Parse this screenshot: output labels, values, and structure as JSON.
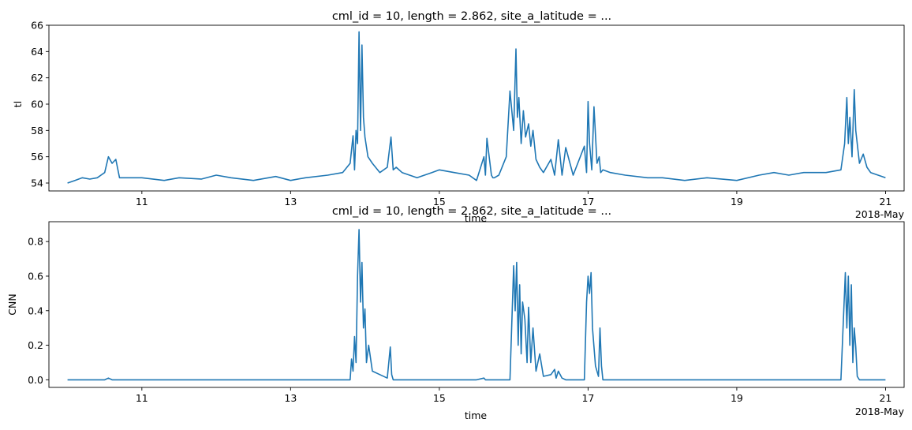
{
  "chart_data": [
    {
      "type": "line",
      "title": "cml_id = 10, length = 2.862, site_a_latitude = ...",
      "xlabel": "time",
      "ylabel": "tl",
      "x_offset_label": "2018-May",
      "x_ticks": [
        11,
        13,
        15,
        17,
        19,
        21
      ],
      "x_tick_labels": [
        "11",
        "13",
        "15",
        "17",
        "19",
        "21"
      ],
      "y_ticks": [
        54,
        56,
        58,
        60,
        62,
        64,
        66
      ],
      "y_tick_labels": [
        "54",
        "56",
        "58",
        "60",
        "62",
        "64",
        "66"
      ],
      "xlim": [
        9.75,
        21.25
      ],
      "ylim": [
        53.4,
        66.0
      ],
      "line_color": "#1f77b4",
      "grid": false,
      "series": [
        {
          "x": [
            10.0,
            10.1,
            10.2,
            10.3,
            10.4,
            10.5,
            10.55,
            10.6,
            10.65,
            10.7,
            10.8,
            11.0,
            11.3,
            11.5,
            11.8,
            12.0,
            12.2,
            12.5,
            12.8,
            13.0,
            13.2,
            13.5,
            13.7,
            13.8,
            13.84,
            13.86,
            13.88,
            13.9,
            13.92,
            13.94,
            13.96,
            13.98,
            14.0,
            14.04,
            14.1,
            14.2,
            14.3,
            14.35,
            14.38,
            14.42,
            14.5,
            14.7,
            14.9,
            15.0,
            15.2,
            15.4,
            15.5,
            15.6,
            15.62,
            15.64,
            15.7,
            15.72,
            15.74,
            15.8,
            15.9,
            15.95,
            16.0,
            16.03,
            16.05,
            16.07,
            16.1,
            16.13,
            16.16,
            16.2,
            16.23,
            16.26,
            16.3,
            16.35,
            16.4,
            16.5,
            16.55,
            16.6,
            16.65,
            16.7,
            16.8,
            16.95,
            16.98,
            17.0,
            17.02,
            17.05,
            17.08,
            17.12,
            17.15,
            17.17,
            17.2,
            17.3,
            17.5,
            17.8,
            18.0,
            18.3,
            18.6,
            19.0,
            19.3,
            19.5,
            19.7,
            19.9,
            20.2,
            20.4,
            20.45,
            20.48,
            20.5,
            20.52,
            20.55,
            20.58,
            20.6,
            20.65,
            20.7,
            20.75,
            20.8,
            20.9,
            21.0
          ],
          "y": [
            54.0,
            54.2,
            54.4,
            54.3,
            54.4,
            54.8,
            56.0,
            55.5,
            55.8,
            54.4,
            54.4,
            54.4,
            54.2,
            54.4,
            54.3,
            54.6,
            54.4,
            54.2,
            54.5,
            54.2,
            54.4,
            54.6,
            54.8,
            55.5,
            57.6,
            55.0,
            58.0,
            57.0,
            65.5,
            58.0,
            64.5,
            59.0,
            57.5,
            56.0,
            55.5,
            54.8,
            55.2,
            57.5,
            55.0,
            55.2,
            54.8,
            54.4,
            54.8,
            55.0,
            54.8,
            54.6,
            54.2,
            56.0,
            54.6,
            57.4,
            54.6,
            54.4,
            54.4,
            54.6,
            56.0,
            61.0,
            58.0,
            64.2,
            59.0,
            60.5,
            57.0,
            59.5,
            57.5,
            58.5,
            56.8,
            58.0,
            55.8,
            55.2,
            54.8,
            55.8,
            54.6,
            57.3,
            54.6,
            56.7,
            54.6,
            56.8,
            54.8,
            60.2,
            57.0,
            55.0,
            59.8,
            55.5,
            56.0,
            54.8,
            55.0,
            54.8,
            54.6,
            54.4,
            54.4,
            54.2,
            54.4,
            54.2,
            54.6,
            54.8,
            54.6,
            54.8,
            54.8,
            55.0,
            57.0,
            60.5,
            57.0,
            59.0,
            56.0,
            61.1,
            58.0,
            55.5,
            56.2,
            55.2,
            54.8,
            54.6,
            54.4
          ]
        }
      ]
    },
    {
      "type": "line",
      "title": "cml_id = 10, length = 2.862, site_a_latitude = ...",
      "xlabel": "time",
      "ylabel": "CNN",
      "x_offset_label": "2018-May",
      "x_ticks": [
        11,
        13,
        15,
        17,
        19,
        21
      ],
      "x_tick_labels": [
        "11",
        "13",
        "15",
        "17",
        "19",
        "21"
      ],
      "y_ticks": [
        0.0,
        0.2,
        0.4,
        0.6,
        0.8
      ],
      "y_tick_labels": [
        "0.0",
        "0.2",
        "0.4",
        "0.6",
        "0.8"
      ],
      "xlim": [
        9.75,
        21.25
      ],
      "ylim": [
        -0.044,
        0.915
      ],
      "line_color": "#1f77b4",
      "grid": false,
      "series": [
        {
          "x": [
            10.0,
            10.4,
            10.5,
            10.55,
            10.6,
            11.0,
            12.0,
            13.0,
            13.6,
            13.8,
            13.82,
            13.84,
            13.86,
            13.88,
            13.9,
            13.92,
            13.94,
            13.96,
            13.98,
            14.0,
            14.02,
            14.05,
            14.1,
            14.2,
            14.3,
            14.34,
            14.36,
            14.38,
            14.45,
            14.8,
            15.5,
            15.6,
            15.62,
            15.64,
            15.7,
            15.95,
            16.0,
            16.02,
            16.04,
            16.06,
            16.08,
            16.1,
            16.12,
            16.15,
            16.18,
            16.2,
            16.23,
            16.26,
            16.3,
            16.35,
            16.4,
            16.5,
            16.55,
            16.57,
            16.6,
            16.65,
            16.7,
            16.95,
            16.98,
            17.0,
            17.02,
            17.04,
            17.06,
            17.1,
            17.14,
            17.16,
            17.18,
            17.2,
            17.3,
            17.8,
            18.5,
            19.2,
            19.8,
            20.4,
            20.46,
            20.48,
            20.5,
            20.52,
            20.54,
            20.56,
            20.58,
            20.6,
            20.62,
            20.65,
            20.7,
            20.8,
            21.0
          ],
          "y": [
            0.0,
            0.0,
            0.0,
            0.01,
            0.0,
            0.0,
            0.0,
            0.0,
            0.0,
            0.0,
            0.12,
            0.05,
            0.25,
            0.1,
            0.6,
            0.87,
            0.45,
            0.68,
            0.3,
            0.41,
            0.1,
            0.2,
            0.05,
            0.03,
            0.01,
            0.19,
            0.03,
            0.0,
            0.0,
            0.0,
            0.0,
            0.01,
            0.0,
            0.0,
            0.0,
            0.0,
            0.66,
            0.4,
            0.68,
            0.2,
            0.55,
            0.15,
            0.45,
            0.35,
            0.1,
            0.42,
            0.1,
            0.3,
            0.05,
            0.15,
            0.02,
            0.03,
            0.06,
            0.01,
            0.05,
            0.01,
            0.0,
            0.0,
            0.45,
            0.6,
            0.5,
            0.62,
            0.3,
            0.08,
            0.02,
            0.3,
            0.08,
            0.0,
            0.0,
            0.0,
            0.0,
            0.0,
            0.0,
            0.0,
            0.62,
            0.3,
            0.6,
            0.2,
            0.55,
            0.1,
            0.3,
            0.19,
            0.02,
            0.0,
            0.0,
            0.0,
            0.0
          ]
        }
      ]
    }
  ]
}
